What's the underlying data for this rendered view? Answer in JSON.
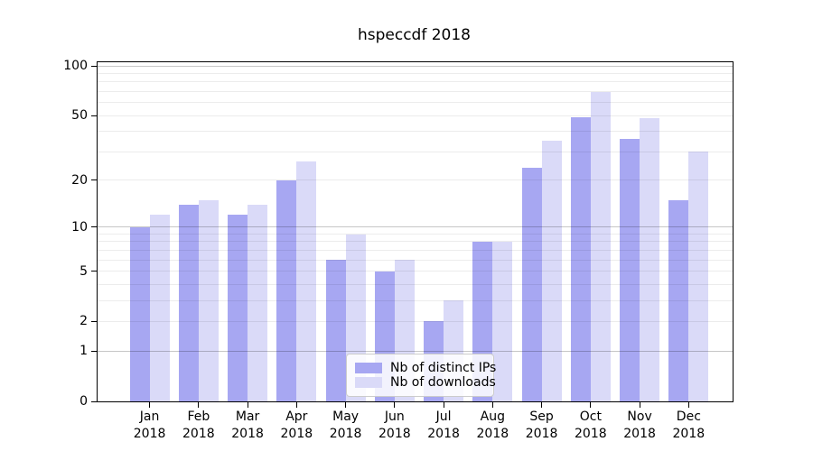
{
  "chart_data": {
    "type": "bar",
    "title": "hspeccdf 2018",
    "categories": [
      "Jan",
      "Feb",
      "Mar",
      "Apr",
      "May",
      "Jun",
      "Jul",
      "Aug",
      "Sep",
      "Oct",
      "Nov",
      "Dec"
    ],
    "year_label": "2018",
    "series": [
      {
        "name": "Nb of distinct IPs",
        "color": "#a7a7f2",
        "values": [
          10,
          14,
          12,
          20,
          6,
          5,
          2,
          8,
          24,
          49,
          36,
          15
        ]
      },
      {
        "name": "Nb of downloads",
        "color": "#dadaf8",
        "values": [
          12,
          15,
          14,
          26,
          9,
          6,
          3,
          8,
          35,
          70,
          48,
          30
        ]
      }
    ],
    "yscale": "log1p",
    "yticks": [
      0,
      1,
      2,
      5,
      10,
      20,
      50,
      100
    ],
    "ylim": [
      0,
      105
    ],
    "grid_minor": [
      2,
      3,
      4,
      5,
      6,
      7,
      8,
      9,
      20,
      30,
      40,
      50,
      60,
      70,
      80,
      90
    ],
    "grid_major": [
      1,
      10,
      100
    ],
    "legend_position": "lower center",
    "grid": true,
    "xlabel": "",
    "ylabel": ""
  }
}
